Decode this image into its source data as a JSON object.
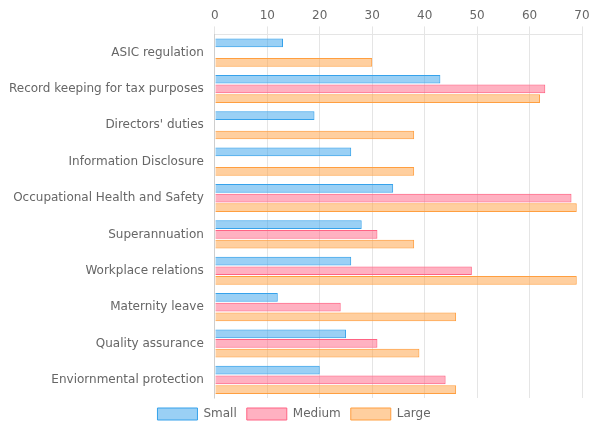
{
  "chart_data": {
    "type": "bar",
    "orientation": "horizontal",
    "categories": [
      "ASIC regulation",
      "Record keeping for tax purposes",
      "Directors' duties",
      "Information Disclosure",
      "Occupational Health and Safety",
      "Superannuation",
      "Workplace relations",
      "Maternity leave",
      "Quality assurance",
      "Enviornmental protection"
    ],
    "series": [
      {
        "name": "Small",
        "values": [
          13,
          43,
          19,
          26,
          34,
          28,
          26,
          12,
          25,
          20
        ]
      },
      {
        "name": "Medium",
        "values": [
          0,
          63,
          0,
          0,
          68,
          31,
          49,
          24,
          31,
          44
        ]
      },
      {
        "name": "Large",
        "values": [
          30,
          62,
          38,
          38,
          69,
          38,
          69,
          46,
          39,
          46
        ]
      }
    ],
    "xlim": [
      0,
      70
    ],
    "xticks": [
      0,
      10,
      20,
      30,
      40,
      50,
      60,
      70
    ],
    "grid": "x",
    "legend": "bottom"
  }
}
